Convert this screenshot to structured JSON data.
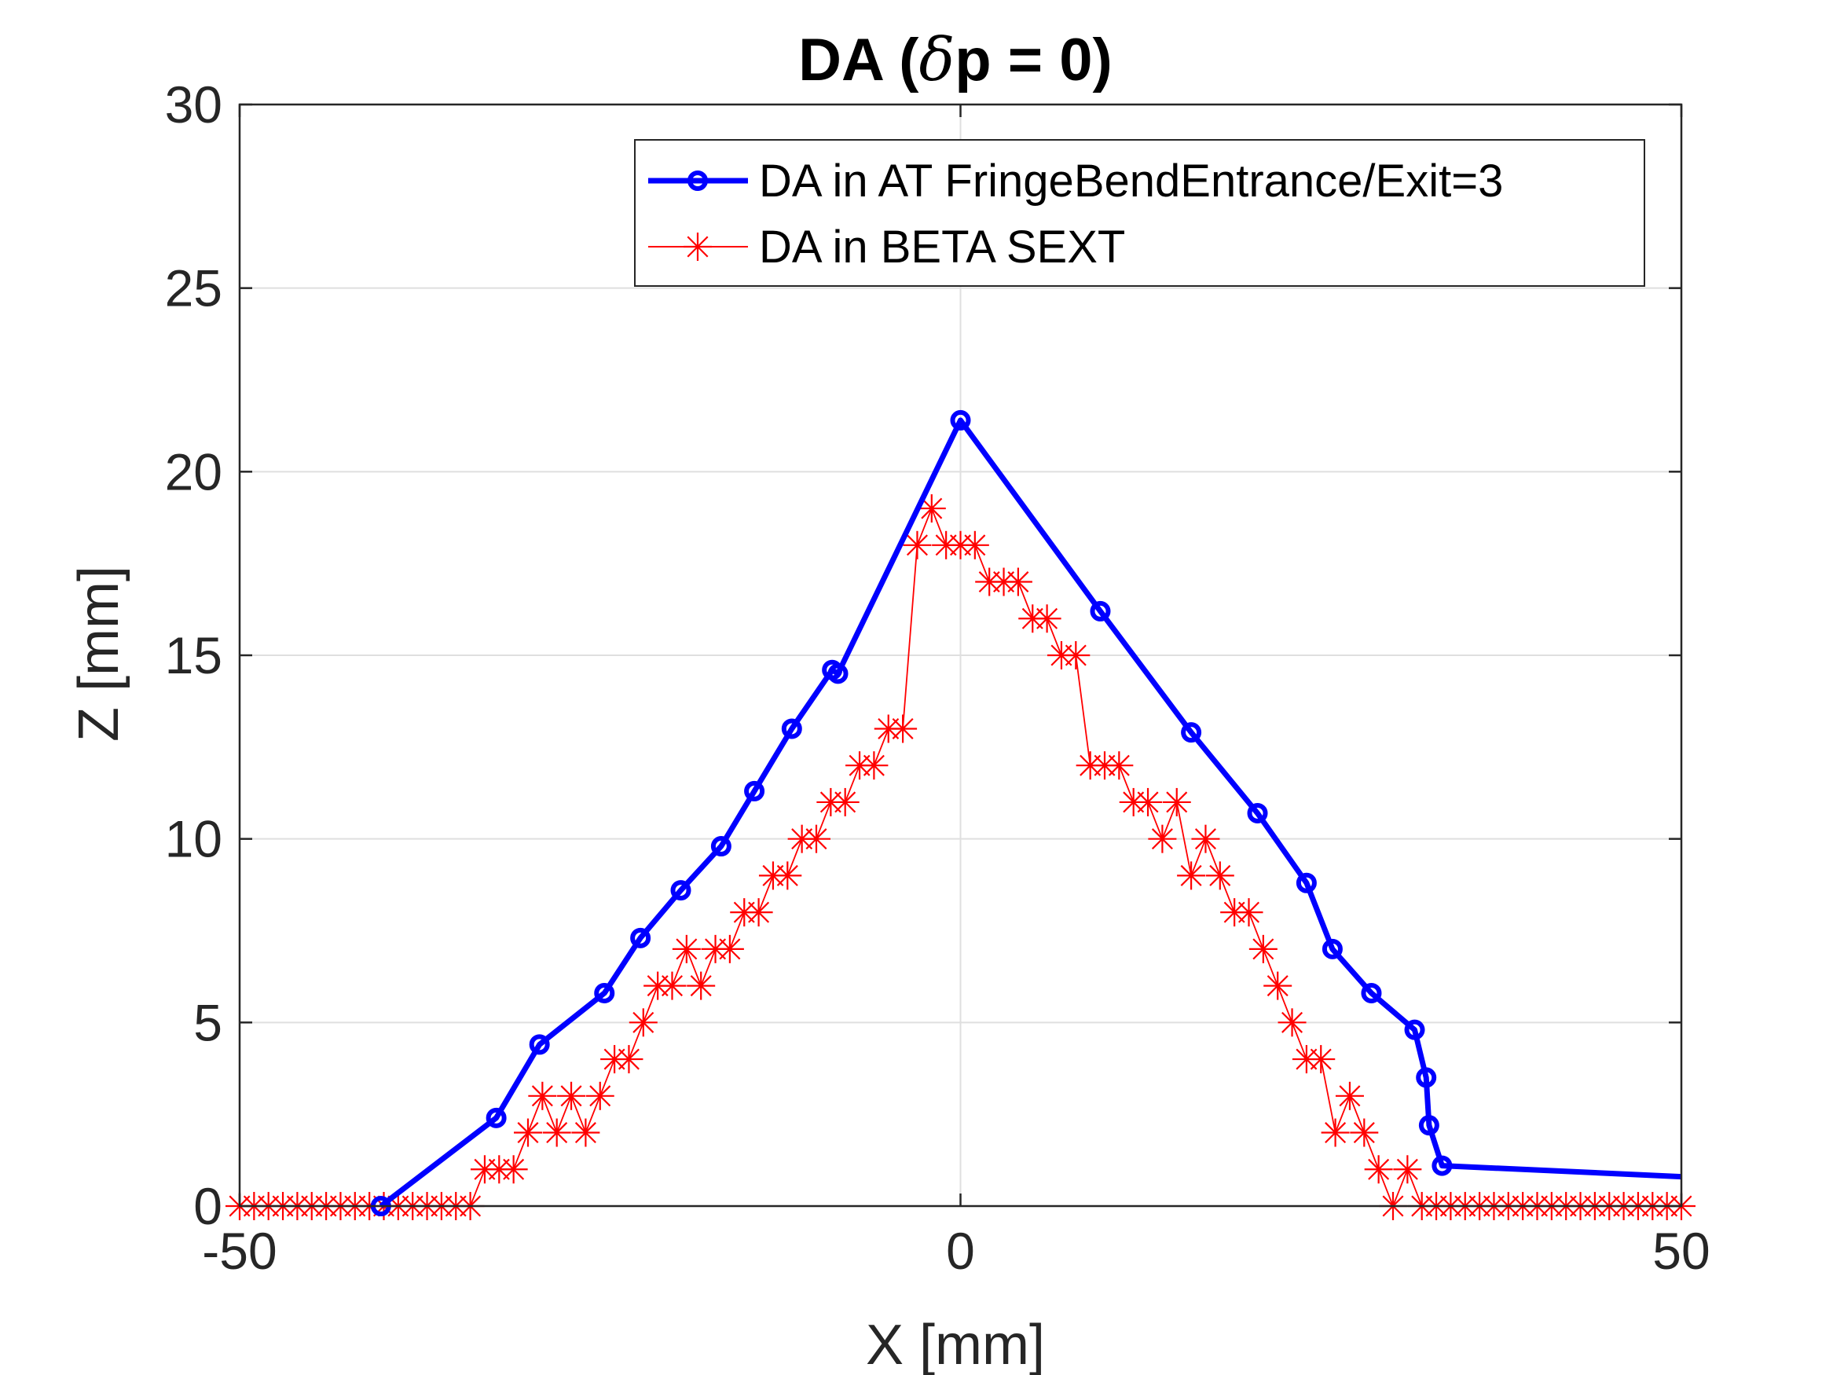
{
  "chart_data": {
    "type": "line",
    "title": "DA (δp = 0)",
    "title_parts": {
      "prefix": "DA (",
      "symbol": "δ",
      "suffix": "p = 0)"
    },
    "xlabel": "X [mm]",
    "ylabel": "Z [mm]",
    "xlim": [
      -50,
      50
    ],
    "ylim": [
      0,
      30
    ],
    "xticks": [
      -50,
      0,
      50
    ],
    "yticks": [
      0,
      5,
      10,
      15,
      20,
      25,
      30
    ],
    "grid": true,
    "legend_position": "top-right",
    "series": [
      {
        "name": "DA in AT FringeBendEntrance/Exit=3",
        "color": "#0000ff",
        "marker": "circle",
        "x": [
          -40.2,
          -32.2,
          -29.2,
          -24.7,
          -22.2,
          -19.4,
          -16.6,
          -14.3,
          -11.7,
          -8.9,
          -8.5,
          0.0,
          9.7,
          16.0,
          20.6,
          24.0,
          25.8,
          28.5,
          31.5,
          32.3,
          32.5,
          33.4,
          50.0
        ],
        "y": [
          0.0,
          2.4,
          4.4,
          5.8,
          7.3,
          8.6,
          9.8,
          11.3,
          13.0,
          14.6,
          14.5,
          21.4,
          16.2,
          12.9,
          10.7,
          8.8,
          7.0,
          5.8,
          4.8,
          3.5,
          2.2,
          1.1,
          0.8
        ]
      },
      {
        "name": "DA in BETA SEXT",
        "color": "#ff0000",
        "marker": "asterisk",
        "x": [
          -50,
          -49,
          -48,
          -47,
          -46,
          -45,
          -44,
          -43,
          -42,
          -41,
          -40,
          -39,
          -38,
          -37,
          -36,
          -35,
          -34,
          -33,
          -32,
          -31,
          -30,
          -29,
          -28,
          -27,
          -26,
          -25,
          -24,
          -23,
          -22,
          -21,
          -20,
          -19,
          -18,
          -17,
          -16,
          -15,
          -14,
          -13,
          -12,
          -11,
          -10,
          -9,
          -8,
          -7,
          -6,
          -5,
          -4,
          -3,
          -2,
          -1,
          0,
          1,
          2,
          3,
          4,
          5,
          6,
          7,
          8,
          9,
          10,
          11,
          12,
          13,
          14,
          15,
          16,
          17,
          18,
          19,
          20,
          21,
          22,
          23,
          24,
          25,
          26,
          27,
          28,
          29,
          30,
          31,
          32,
          33,
          34,
          35,
          36,
          37,
          38,
          39,
          40,
          41,
          42,
          43,
          44,
          45,
          46,
          47,
          48,
          49,
          50
        ],
        "y": [
          0,
          0,
          0,
          0,
          0,
          0,
          0,
          0,
          0,
          0,
          0,
          0,
          0,
          0,
          0,
          0,
          0,
          1,
          1,
          1,
          2,
          3,
          2,
          3,
          2,
          3,
          4,
          4,
          5,
          6,
          6,
          7,
          6,
          7,
          7,
          8,
          8,
          9,
          9,
          10,
          10,
          11,
          11,
          12,
          12,
          13,
          13,
          18,
          19,
          18,
          18,
          18,
          17,
          17,
          17,
          16,
          16,
          15,
          15,
          12,
          12,
          12,
          11,
          11,
          10,
          11,
          9,
          10,
          9,
          8,
          8,
          7,
          6,
          5,
          4,
          4,
          2,
          3,
          2,
          1,
          0,
          1,
          0,
          0,
          0,
          0,
          0,
          0,
          0,
          0,
          0,
          0,
          0,
          0,
          0,
          0,
          0,
          0,
          0,
          0,
          0
        ]
      }
    ]
  }
}
